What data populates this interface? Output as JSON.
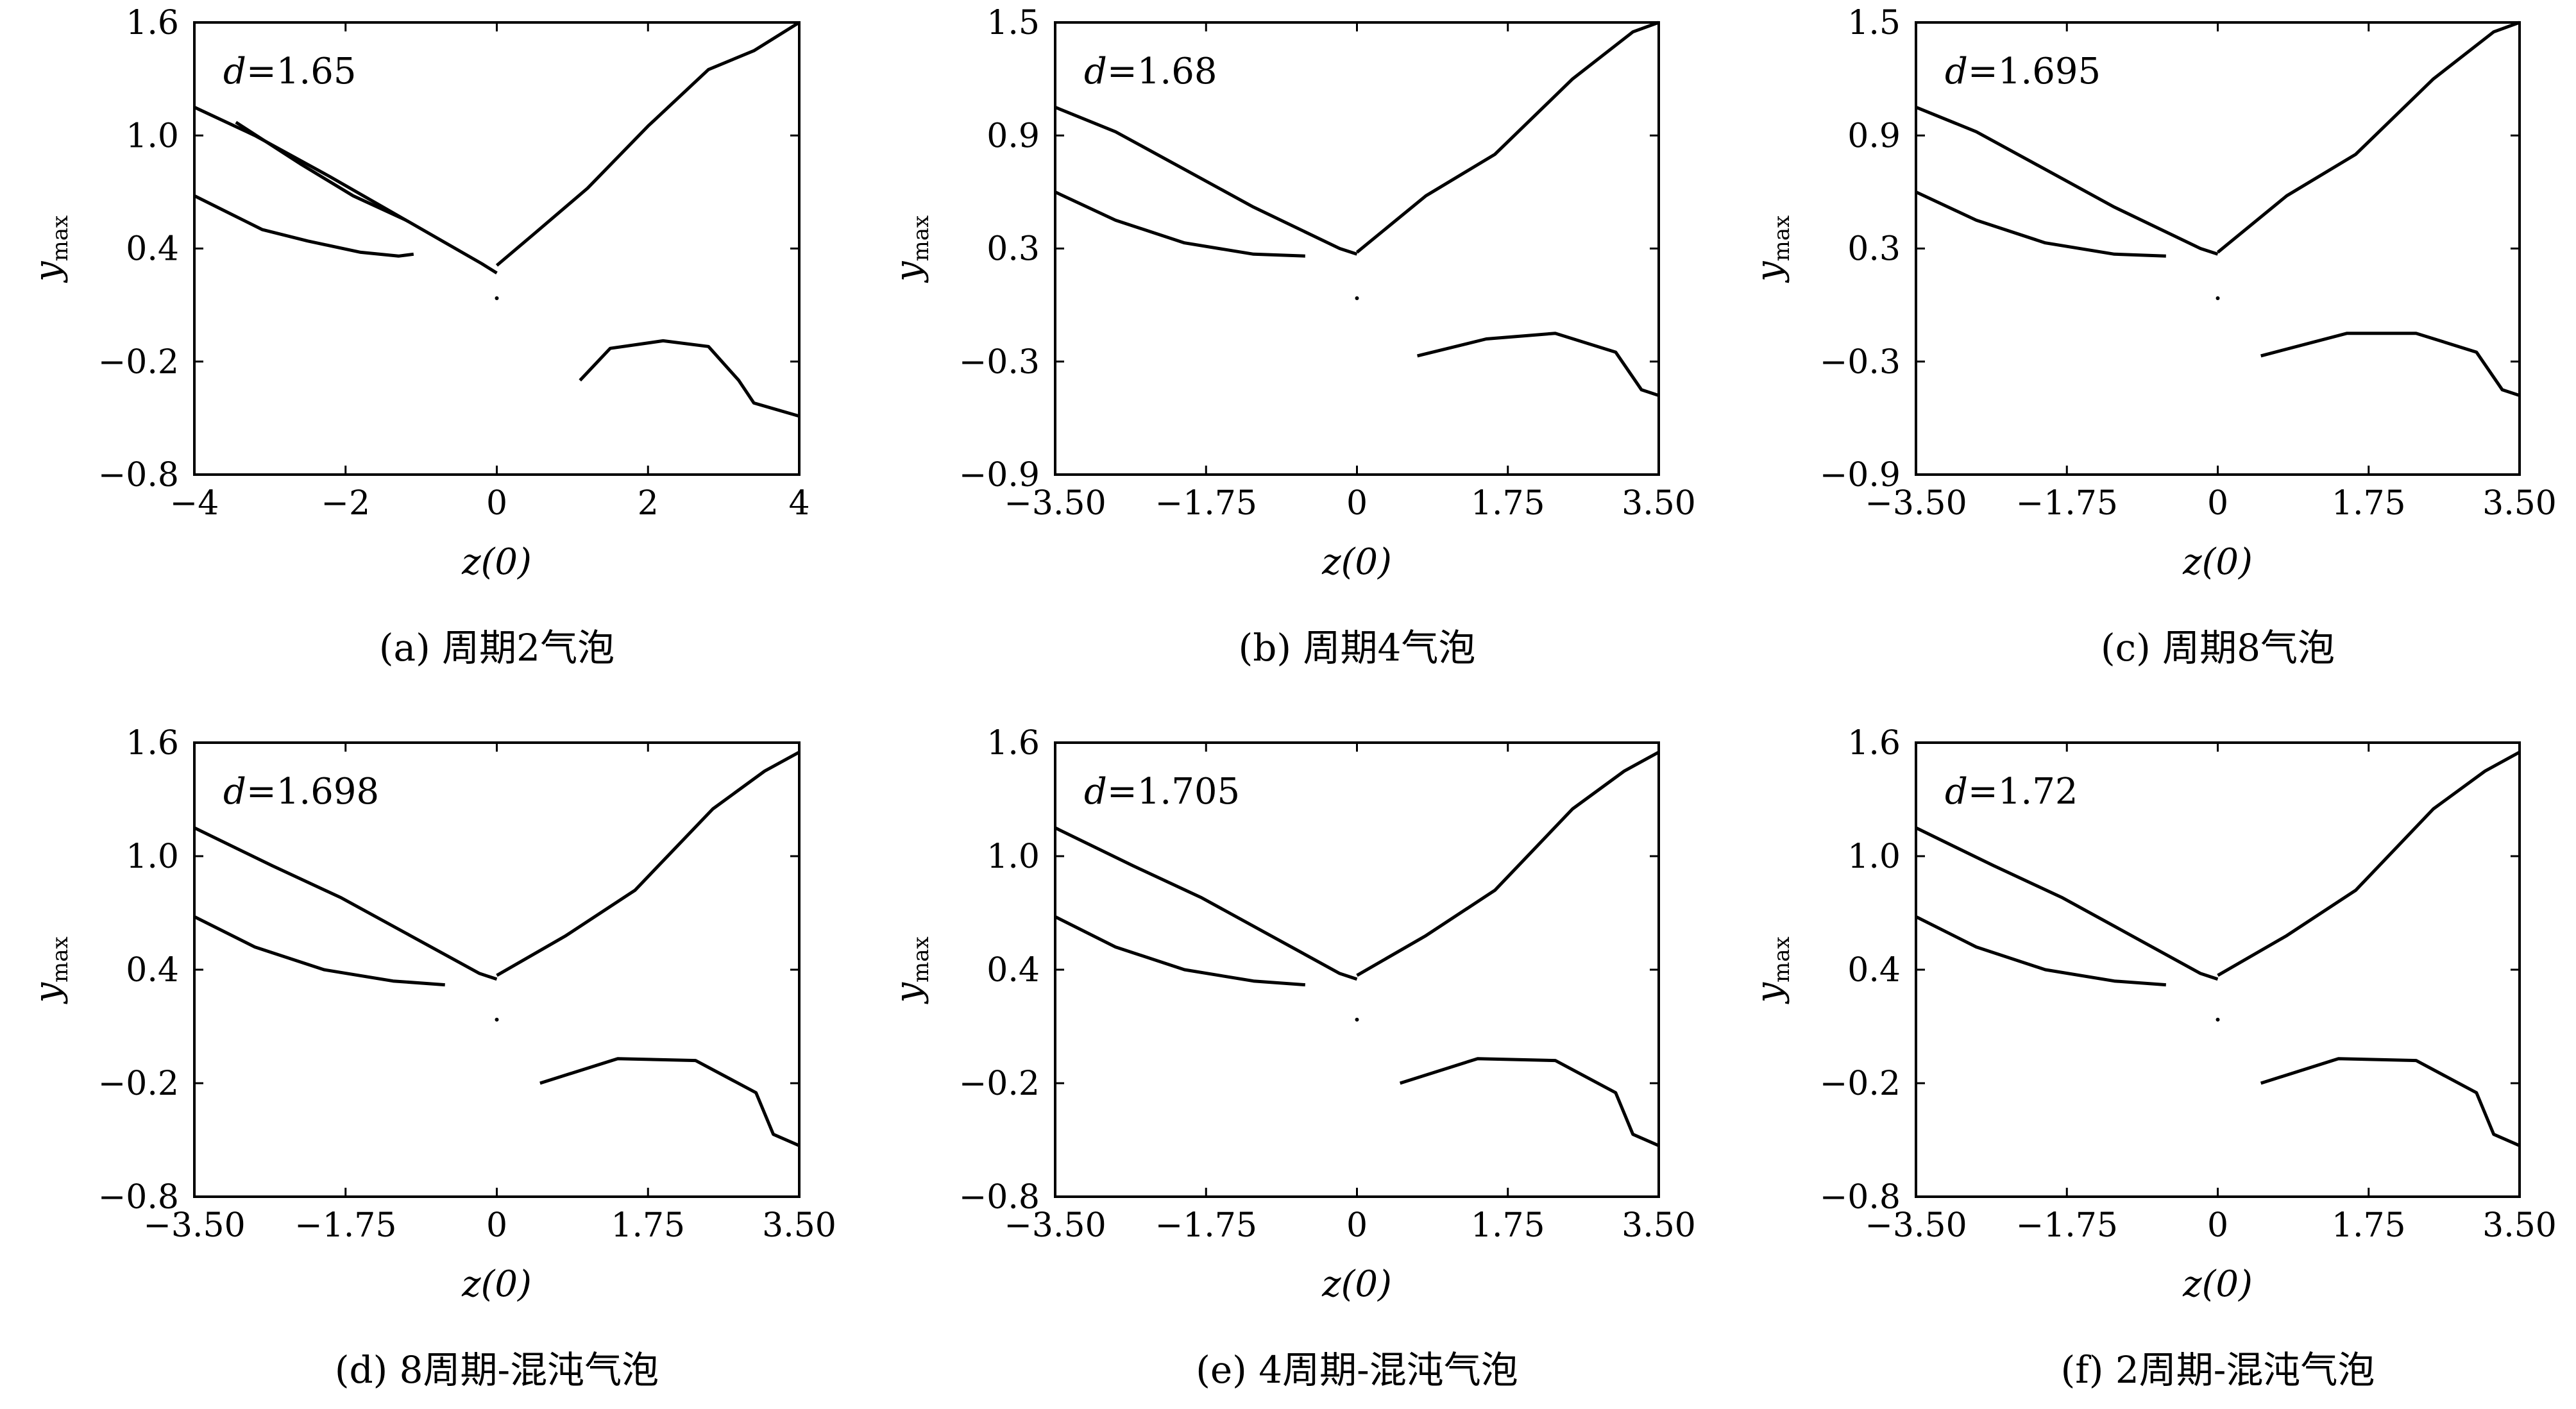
{
  "chart_data": [
    {
      "panel": "a",
      "type": "scatter",
      "d_label": "d=1.65",
      "caption": "(a) 周期2气泡",
      "xlabel": "z(0)",
      "ylabel": "ymax",
      "xlim": [
        -4,
        4
      ],
      "ylim": [
        -0.8,
        1.6
      ],
      "xticks": [
        "-4",
        "-2",
        "0",
        "2",
        "4"
      ],
      "yticks": [
        "1.6",
        "1.0",
        "0.4",
        "-0.2",
        "-0.8"
      ],
      "series": [
        {
          "curve": "upper-left outer",
          "x": [
            -4,
            -3.2,
            -2.2,
            -1.2,
            -0.2,
            0
          ],
          "y": [
            1.15,
            1.0,
            0.78,
            0.55,
            0.32,
            0.27
          ]
        },
        {
          "curve": "upper-left bubble",
          "x": [
            -3.45,
            -2.6,
            -1.9,
            -1.2
          ],
          "y": [
            1.07,
            0.85,
            0.68,
            0.55
          ]
        },
        {
          "curve": "lower-left",
          "x": [
            -4,
            -3.5,
            -3.1,
            -2.5,
            -1.8,
            -1.3,
            -1.1
          ],
          "y": [
            0.68,
            0.58,
            0.5,
            0.44,
            0.38,
            0.36,
            0.37
          ]
        },
        {
          "curve": "right branch",
          "x": [
            0,
            0.5,
            1.2,
            2.0,
            2.8,
            3.4,
            4.0
          ],
          "y": [
            0.31,
            0.48,
            0.72,
            1.05,
            1.35,
            1.45,
            1.6
          ]
        },
        {
          "curve": "lower-right",
          "x": [
            1.1,
            1.5,
            2.2,
            2.8,
            3.2,
            3.4,
            4.0
          ],
          "y": [
            -0.3,
            -0.13,
            -0.09,
            -0.12,
            -0.3,
            -0.42,
            -0.49
          ]
        }
      ]
    },
    {
      "panel": "b",
      "type": "scatter",
      "d_label": "d=1.68",
      "caption": "(b) 周期4气泡",
      "xlabel": "z(0)",
      "ylabel": "ymax",
      "xlim": [
        -3.5,
        3.5
      ],
      "ylim": [
        -0.9,
        1.5
      ],
      "xticks": [
        "-3.50",
        "-1.75",
        "0",
        "1.75",
        "3.50"
      ],
      "yticks": [
        "1.5",
        "0.9",
        "0.3",
        "-0.3",
        "-0.9"
      ],
      "series": [
        {
          "curve": "upper-left outer",
          "x": [
            -3.5,
            -2.8,
            -2.0,
            -1.2,
            -0.2,
            0
          ],
          "y": [
            1.05,
            0.92,
            0.72,
            0.52,
            0.3,
            0.27
          ]
        },
        {
          "curve": "lower-left",
          "x": [
            -3.5,
            -2.8,
            -2.0,
            -1.2,
            -0.6
          ],
          "y": [
            0.6,
            0.45,
            0.33,
            0.27,
            0.26
          ]
        },
        {
          "curve": "right branch",
          "x": [
            0,
            0.8,
            1.6,
            2.5,
            3.2,
            3.5
          ],
          "y": [
            0.28,
            0.58,
            0.8,
            1.2,
            1.45,
            1.5
          ]
        },
        {
          "curve": "lower-right",
          "x": [
            0.7,
            1.5,
            2.3,
            3.0,
            3.3,
            3.5
          ],
          "y": [
            -0.27,
            -0.18,
            -0.15,
            -0.25,
            -0.45,
            -0.48
          ]
        }
      ]
    },
    {
      "panel": "c",
      "type": "scatter",
      "d_label": "d=1.695",
      "caption": "(c) 周期8气泡",
      "xlabel": "z(0)",
      "ylabel": "ymax",
      "xlim": [
        -3.5,
        3.5
      ],
      "ylim": [
        -0.9,
        1.5
      ],
      "xticks": [
        "-3.50",
        "-1.75",
        "0",
        "1.75",
        "3.50"
      ],
      "yticks": [
        "1.5",
        "0.9",
        "0.3",
        "-0.3",
        "-0.9"
      ],
      "series": [
        {
          "curve": "upper-left outer",
          "x": [
            -3.5,
            -2.8,
            -2.0,
            -1.2,
            -0.2,
            0
          ],
          "y": [
            1.05,
            0.92,
            0.72,
            0.52,
            0.3,
            0.27
          ]
        },
        {
          "curve": "lower-left",
          "x": [
            -3.5,
            -2.8,
            -2.0,
            -1.2,
            -0.6
          ],
          "y": [
            0.6,
            0.45,
            0.33,
            0.27,
            0.26
          ]
        },
        {
          "curve": "right branch",
          "x": [
            0,
            0.8,
            1.6,
            2.5,
            3.2,
            3.5
          ],
          "y": [
            0.28,
            0.58,
            0.8,
            1.2,
            1.45,
            1.5
          ]
        },
        {
          "curve": "lower-right",
          "x": [
            0.5,
            1.5,
            2.3,
            3.0,
            3.3,
            3.5
          ],
          "y": [
            -0.27,
            -0.15,
            -0.15,
            -0.25,
            -0.45,
            -0.48
          ]
        }
      ]
    },
    {
      "panel": "d",
      "type": "scatter",
      "d_label": "d=1.698",
      "caption": "(d) 8周期-混沌气泡",
      "xlabel": "z(0)",
      "ylabel": "ymax",
      "xlim": [
        -3.5,
        3.5
      ],
      "ylim": [
        -0.8,
        1.6
      ],
      "xticks": [
        "-3.50",
        "-1.75",
        "0",
        "1.75",
        "3.50"
      ],
      "yticks": [
        "1.6",
        "1.0",
        "0.4",
        "-0.2",
        "-0.8"
      ],
      "series": [
        {
          "curve": "upper-left outer",
          "x": [
            -3.5,
            -2.6,
            -1.8,
            -1.0,
            -0.2,
            0
          ],
          "y": [
            1.15,
            0.95,
            0.78,
            0.58,
            0.38,
            0.35
          ]
        },
        {
          "curve": "lower-left",
          "x": [
            -3.5,
            -2.8,
            -2.0,
            -1.2,
            -0.6
          ],
          "y": [
            0.68,
            0.52,
            0.4,
            0.34,
            0.32
          ]
        },
        {
          "curve": "right branch",
          "x": [
            0,
            0.8,
            1.6,
            2.5,
            3.1,
            3.5
          ],
          "y": [
            0.37,
            0.58,
            0.82,
            1.25,
            1.45,
            1.55
          ]
        },
        {
          "curve": "lower-right",
          "x": [
            0.5,
            1.4,
            2.3,
            3.0,
            3.2,
            3.5
          ],
          "y": [
            -0.2,
            -0.07,
            -0.08,
            -0.25,
            -0.47,
            -0.53
          ]
        }
      ]
    },
    {
      "panel": "e",
      "type": "scatter",
      "d_label": "d=1.705",
      "caption": "(e) 4周期-混沌气泡",
      "xlabel": "z(0)",
      "ylabel": "ymax",
      "xlim": [
        -3.5,
        3.5
      ],
      "ylim": [
        -0.8,
        1.6
      ],
      "xticks": [
        "-3.50",
        "-1.75",
        "0",
        "1.75",
        "3.50"
      ],
      "yticks": [
        "1.6",
        "1.0",
        "0.4",
        "-0.2",
        "-0.8"
      ],
      "series": [
        {
          "curve": "upper-left outer",
          "x": [
            -3.5,
            -2.6,
            -1.8,
            -1.0,
            -0.2,
            0
          ],
          "y": [
            1.15,
            0.95,
            0.78,
            0.58,
            0.38,
            0.35
          ]
        },
        {
          "curve": "lower-left",
          "x": [
            -3.5,
            -2.8,
            -2.0,
            -1.2,
            -0.6
          ],
          "y": [
            0.68,
            0.52,
            0.4,
            0.34,
            0.32
          ]
        },
        {
          "curve": "right branch",
          "x": [
            0,
            0.8,
            1.6,
            2.5,
            3.1,
            3.5
          ],
          "y": [
            0.37,
            0.58,
            0.82,
            1.25,
            1.45,
            1.55
          ]
        },
        {
          "curve": "lower-right",
          "x": [
            0.5,
            1.4,
            2.3,
            3.0,
            3.2,
            3.5
          ],
          "y": [
            -0.2,
            -0.07,
            -0.08,
            -0.25,
            -0.47,
            -0.53
          ]
        }
      ]
    },
    {
      "panel": "f",
      "type": "scatter",
      "d_label": "d=1.72",
      "caption": "(f) 2周期-混沌气泡",
      "xlabel": "z(0)",
      "ylabel": "ymax",
      "xlim": [
        -3.5,
        3.5
      ],
      "ylim": [
        -0.8,
        1.6
      ],
      "xticks": [
        "-3.50",
        "-1.75",
        "0",
        "1.75",
        "3.50"
      ],
      "yticks": [
        "1.6",
        "1.0",
        "0.4",
        "-0.2",
        "-0.8"
      ],
      "series": [
        {
          "curve": "upper-left outer",
          "x": [
            -3.5,
            -2.6,
            -1.8,
            -1.0,
            -0.2,
            0
          ],
          "y": [
            1.15,
            0.95,
            0.78,
            0.58,
            0.38,
            0.35
          ]
        },
        {
          "curve": "lower-left",
          "x": [
            -3.5,
            -2.8,
            -2.0,
            -1.2,
            -0.6
          ],
          "y": [
            0.68,
            0.52,
            0.4,
            0.34,
            0.32
          ]
        },
        {
          "curve": "right branch",
          "x": [
            0,
            0.8,
            1.6,
            2.5,
            3.1,
            3.5
          ],
          "y": [
            0.37,
            0.58,
            0.82,
            1.25,
            1.45,
            1.55
          ]
        },
        {
          "curve": "lower-right",
          "x": [
            0.5,
            1.4,
            2.3,
            3.0,
            3.2,
            3.5
          ],
          "y": [
            -0.2,
            -0.07,
            -0.08,
            -0.25,
            -0.47,
            -0.53
          ]
        }
      ]
    }
  ]
}
